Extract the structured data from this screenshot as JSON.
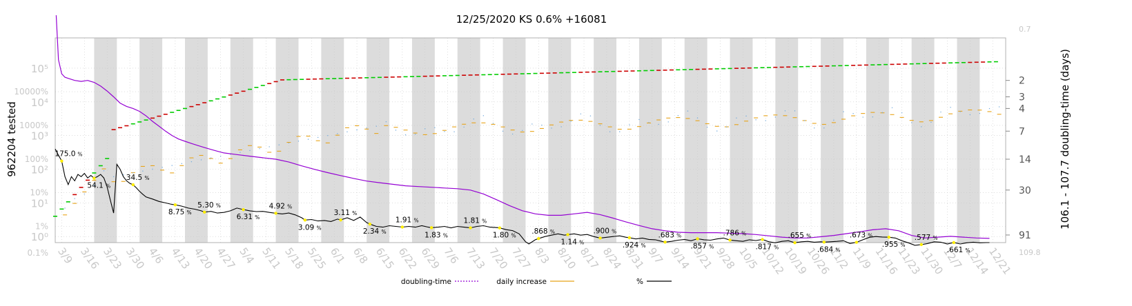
{
  "chart_data": {
    "type": "line",
    "title": "12/25/2020 KS 0.6% +16081",
    "left_axis_label": "962204 tested",
    "right_axis_label": "106.1 - 107.7 doubling-time (days)",
    "left_ticks": [
      {
        "label": "10⁰",
        "value": 1
      },
      {
        "label": "1%",
        "value": 2
      },
      {
        "label": "10¹",
        "value": 10
      },
      {
        "label": "10%",
        "value": 20
      },
      {
        "label": "10²",
        "value": 100
      },
      {
        "label": "100%",
        "value": 200
      },
      {
        "label": "10³",
        "value": 1000
      },
      {
        "label": "1000%",
        "value": 2000
      },
      {
        "label": "10⁴",
        "value": 10000
      },
      {
        "label": "10000%",
        "value": 20000
      },
      {
        "label": "10⁵",
        "value": 100000
      }
    ],
    "left_bottom_label": "0.1%",
    "right_ticks": [
      {
        "label": "2",
        "value": 2
      },
      {
        "label": "3",
        "value": 3
      },
      {
        "label": "4",
        "value": 4
      },
      {
        "label": "7",
        "value": 7
      },
      {
        "label": "14",
        "value": 14
      },
      {
        "label": "30",
        "value": 30
      },
      {
        "label": "91",
        "value": 91
      }
    ],
    "right_top_label": "0.7",
    "right_bottom_label": "109.8",
    "x_labels": [
      "3/9",
      "3/16",
      "3/23",
      "3/30",
      "4/6",
      "4/13",
      "4/20",
      "4/27",
      "5/4",
      "5/11",
      "5/18",
      "5/25",
      "6/1",
      "6/8",
      "6/15",
      "6/22",
      "6/29",
      "7/6",
      "7/13",
      "7/20",
      "7/27",
      "8/3",
      "8/10",
      "8/17",
      "8/24",
      "8/31",
      "9/7",
      "9/14",
      "9/21",
      "9/28",
      "10/5",
      "10/12",
      "10/19",
      "10/26",
      "11/2",
      "11/9",
      "11/16",
      "11/23",
      "11/30",
      "12/7",
      "12/14",
      "12/21"
    ],
    "x_start": "3/7",
    "x_end": "12/25",
    "grid": true,
    "legend_position": "bottom",
    "legend": [
      {
        "name": "doubling-time",
        "style": "dotted",
        "color": "#9400d3"
      },
      {
        "name": "daily increase",
        "style": "solid",
        "color": "#e8a317"
      },
      {
        "name": "%",
        "style": "solid",
        "color": "#000000"
      }
    ],
    "colors": {
      "doubling_time": "#9400d3",
      "daily_increase": "#e8a317",
      "percent": "#000000",
      "cumulative_up": "#00cc00",
      "cumulative_down": "#cc0000",
      "marker": "#ffee00",
      "week_band": "#dcdcdc",
      "dotted_trend": "#6fa8dc"
    },
    "annotations": [
      {
        "label": "175.0",
        "day": 2,
        "pct": 175.0
      },
      {
        "label": "54.1",
        "day": 12,
        "pct": 54.1
      },
      {
        "label": "34.5",
        "day": 24,
        "pct": 34.5
      },
      {
        "label": "8.75",
        "day": 37,
        "pct": 8.75
      },
      {
        "label": "5.30",
        "day": 46,
        "pct": 5.3
      },
      {
        "label": "6.31",
        "day": 58,
        "pct": 6.31
      },
      {
        "label": "4.92",
        "day": 68,
        "pct": 4.92
      },
      {
        "label": "3.09",
        "day": 77,
        "pct": 3.09
      },
      {
        "label": "3.11",
        "day": 88,
        "pct": 3.11
      },
      {
        "label": "2.34",
        "day": 97,
        "pct": 2.34
      },
      {
        "label": "1.91",
        "day": 107,
        "pct": 1.91
      },
      {
        "label": "1.83",
        "day": 116,
        "pct": 1.83
      },
      {
        "label": "1.81",
        "day": 128,
        "pct": 1.81
      },
      {
        "label": "1.80",
        "day": 137,
        "pct": 1.8
      },
      {
        "label": ".868",
        "day": 149,
        "pct": 0.868
      },
      {
        "label": "1.14",
        "day": 158,
        "pct": 1.14
      },
      {
        "label": ".900",
        "day": 168,
        "pct": 0.9
      },
      {
        "label": ".924",
        "day": 177,
        "pct": 0.924
      },
      {
        "label": ".683",
        "day": 188,
        "pct": 0.683
      },
      {
        "label": ".857",
        "day": 198,
        "pct": 0.857
      },
      {
        "label": ".786",
        "day": 208,
        "pct": 0.786
      },
      {
        "label": ".817",
        "day": 218,
        "pct": 0.817
      },
      {
        "label": ".655",
        "day": 228,
        "pct": 0.655
      },
      {
        "label": ".684",
        "day": 237,
        "pct": 0.684
      },
      {
        "label": ".673",
        "day": 247,
        "pct": 0.673
      },
      {
        "label": ".955",
        "day": 257,
        "pct": 0.955
      },
      {
        "label": ".577",
        "day": 267,
        "pct": 0.577
      },
      {
        "label": ".661",
        "day": 277,
        "pct": 0.661
      }
    ],
    "percent_series": [
      [
        0,
        400
      ],
      [
        1,
        260
      ],
      [
        2,
        175
      ],
      [
        3,
        60
      ],
      [
        4,
        35
      ],
      [
        5,
        60
      ],
      [
        6,
        45
      ],
      [
        7,
        70
      ],
      [
        8,
        60
      ],
      [
        9,
        75
      ],
      [
        10,
        55
      ],
      [
        11,
        65
      ],
      [
        12,
        54.1
      ],
      [
        13,
        60
      ],
      [
        14,
        70
      ],
      [
        15,
        55
      ],
      [
        16,
        30
      ],
      [
        17,
        12
      ],
      [
        18,
        5
      ],
      [
        19,
        140
      ],
      [
        20,
        100
      ],
      [
        21,
        60
      ],
      [
        22,
        45
      ],
      [
        23,
        38
      ],
      [
        24,
        34.5
      ],
      [
        25,
        28
      ],
      [
        26,
        22
      ],
      [
        27,
        18
      ],
      [
        28,
        15
      ],
      [
        30,
        13
      ],
      [
        32,
        11
      ],
      [
        34,
        10
      ],
      [
        36,
        9
      ],
      [
        37,
        8.75
      ],
      [
        39,
        8
      ],
      [
        41,
        7
      ],
      [
        43,
        6.5
      ],
      [
        45,
        5.8
      ],
      [
        46,
        5.3
      ],
      [
        48,
        5.6
      ],
      [
        50,
        5.0
      ],
      [
        52,
        5.2
      ],
      [
        54,
        5.8
      ],
      [
        56,
        7.0
      ],
      [
        58,
        6.31
      ],
      [
        60,
        5.8
      ],
      [
        62,
        5.5
      ],
      [
        64,
        5.6
      ],
      [
        66,
        5.2
      ],
      [
        68,
        4.92
      ],
      [
        70,
        4.7
      ],
      [
        72,
        5.0
      ],
      [
        74,
        4.4
      ],
      [
        76,
        3.6
      ],
      [
        77,
        3.09
      ],
      [
        79,
        3.2
      ],
      [
        81,
        2.9
      ],
      [
        83,
        3.0
      ],
      [
        85,
        2.8
      ],
      [
        87,
        3.3
      ],
      [
        88,
        3.11
      ],
      [
        90,
        3.6
      ],
      [
        92,
        3.0
      ],
      [
        94,
        3.8
      ],
      [
        96,
        2.6
      ],
      [
        97,
        2.34
      ],
      [
        99,
        2.0
      ],
      [
        101,
        1.9
      ],
      [
        103,
        2.1
      ],
      [
        105,
        2.0
      ],
      [
        107,
        1.91
      ],
      [
        109,
        2.0
      ],
      [
        111,
        1.9
      ],
      [
        113,
        2.1
      ],
      [
        115,
        1.9
      ],
      [
        116,
        1.83
      ],
      [
        118,
        1.9
      ],
      [
        120,
        2.0
      ],
      [
        122,
        1.8
      ],
      [
        124,
        2.0
      ],
      [
        126,
        1.9
      ],
      [
        128,
        1.81
      ],
      [
        130,
        2.0
      ],
      [
        132,
        2.1
      ],
      [
        134,
        1.9
      ],
      [
        136,
        1.85
      ],
      [
        137,
        1.8
      ],
      [
        139,
        1.6
      ],
      [
        141,
        1.5
      ],
      [
        143,
        1.2
      ],
      [
        145,
        0.7
      ],
      [
        146,
        0.6
      ],
      [
        148,
        0.8
      ],
      [
        149,
        0.868
      ],
      [
        151,
        1.0
      ],
      [
        153,
        1.1
      ],
      [
        155,
        1.2
      ],
      [
        157,
        1.1
      ],
      [
        158,
        1.14
      ],
      [
        160,
        1.2
      ],
      [
        162,
        1.1
      ],
      [
        164,
        1.15
      ],
      [
        166,
        1.0
      ],
      [
        168,
        0.9
      ],
      [
        170,
        0.95
      ],
      [
        172,
        1.0
      ],
      [
        174,
        1.05
      ],
      [
        176,
        0.95
      ],
      [
        177,
        0.924
      ],
      [
        179,
        0.85
      ],
      [
        181,
        0.9
      ],
      [
        183,
        0.82
      ],
      [
        185,
        0.8
      ],
      [
        187,
        0.72
      ],
      [
        188,
        0.683
      ],
      [
        190,
        0.72
      ],
      [
        192,
        0.78
      ],
      [
        194,
        0.82
      ],
      [
        196,
        0.75
      ],
      [
        198,
        0.857
      ],
      [
        200,
        0.8
      ],
      [
        202,
        0.78
      ],
      [
        204,
        0.85
      ],
      [
        206,
        0.9
      ],
      [
        208,
        0.786
      ],
      [
        210,
        0.75
      ],
      [
        212,
        0.72
      ],
      [
        214,
        0.8
      ],
      [
        216,
        0.76
      ],
      [
        218,
        0.817
      ],
      [
        220,
        0.7
      ],
      [
        222,
        0.65
      ],
      [
        224,
        0.72
      ],
      [
        226,
        0.75
      ],
      [
        228,
        0.655
      ],
      [
        230,
        0.7
      ],
      [
        232,
        0.72
      ],
      [
        234,
        0.68
      ],
      [
        236,
        0.7
      ],
      [
        237,
        0.684
      ],
      [
        239,
        0.7
      ],
      [
        241,
        0.72
      ],
      [
        243,
        0.75
      ],
      [
        245,
        0.62
      ],
      [
        247,
        0.673
      ],
      [
        249,
        0.8
      ],
      [
        251,
        0.95
      ],
      [
        253,
        1.0
      ],
      [
        255,
        0.97
      ],
      [
        257,
        0.955
      ],
      [
        259,
        0.9
      ],
      [
        261,
        0.75
      ],
      [
        263,
        0.65
      ],
      [
        265,
        0.55
      ],
      [
        267,
        0.577
      ],
      [
        269,
        0.62
      ],
      [
        271,
        0.7
      ],
      [
        273,
        0.68
      ],
      [
        275,
        0.6
      ],
      [
        277,
        0.661
      ],
      [
        279,
        0.6
      ],
      [
        281,
        0.65
      ],
      [
        283,
        0.68
      ],
      [
        285,
        0.65
      ],
      [
        287,
        0.66
      ],
      [
        288,
        0.66
      ]
    ],
    "doubling_series": [
      [
        0.3,
        0.4
      ],
      [
        1,
        1.2
      ],
      [
        2,
        1.7
      ],
      [
        3,
        1.85
      ],
      [
        4,
        1.9
      ],
      [
        6,
        2.0
      ],
      [
        8,
        2.05
      ],
      [
        10,
        2.0
      ],
      [
        12,
        2.1
      ],
      [
        14,
        2.3
      ],
      [
        16,
        2.6
      ],
      [
        18,
        3.0
      ],
      [
        20,
        3.5
      ],
      [
        22,
        3.8
      ],
      [
        24,
        4.0
      ],
      [
        26,
        4.3
      ],
      [
        28,
        4.8
      ],
      [
        30,
        5.5
      ],
      [
        32,
        6.2
      ],
      [
        34,
        7.0
      ],
      [
        36,
        7.8
      ],
      [
        38,
        8.5
      ],
      [
        40,
        9.0
      ],
      [
        42,
        9.5
      ],
      [
        44,
        10
      ],
      [
        46,
        10.5
      ],
      [
        48,
        11
      ],
      [
        50,
        11.5
      ],
      [
        52,
        12
      ],
      [
        56,
        12.5
      ],
      [
        60,
        13
      ],
      [
        64,
        13.5
      ],
      [
        68,
        14
      ],
      [
        72,
        15
      ],
      [
        76,
        16.5
      ],
      [
        80,
        18
      ],
      [
        84,
        19.5
      ],
      [
        88,
        21
      ],
      [
        92,
        22.5
      ],
      [
        96,
        24
      ],
      [
        100,
        25
      ],
      [
        104,
        26
      ],
      [
        108,
        27
      ],
      [
        112,
        27.5
      ],
      [
        116,
        28
      ],
      [
        120,
        28.5
      ],
      [
        124,
        29
      ],
      [
        128,
        30
      ],
      [
        132,
        33
      ],
      [
        136,
        38
      ],
      [
        140,
        44
      ],
      [
        144,
        50
      ],
      [
        148,
        54
      ],
      [
        152,
        56
      ],
      [
        156,
        56
      ],
      [
        160,
        54
      ],
      [
        164,
        52
      ],
      [
        168,
        55
      ],
      [
        172,
        60
      ],
      [
        176,
        66
      ],
      [
        180,
        72
      ],
      [
        184,
        78
      ],
      [
        188,
        82
      ],
      [
        192,
        85
      ],
      [
        196,
        86
      ],
      [
        200,
        86
      ],
      [
        204,
        86
      ],
      [
        208,
        87
      ],
      [
        212,
        88
      ],
      [
        216,
        90
      ],
      [
        220,
        93
      ],
      [
        224,
        96
      ],
      [
        228,
        98
      ],
      [
        232,
        98
      ],
      [
        236,
        95
      ],
      [
        240,
        92
      ],
      [
        244,
        88
      ],
      [
        248,
        84
      ],
      [
        252,
        80
      ],
      [
        256,
        78
      ],
      [
        260,
        82
      ],
      [
        264,
        92
      ],
      [
        268,
        98
      ],
      [
        272,
        96
      ],
      [
        276,
        94
      ],
      [
        280,
        96
      ],
      [
        284,
        98
      ],
      [
        288,
        99
      ]
    ]
  }
}
